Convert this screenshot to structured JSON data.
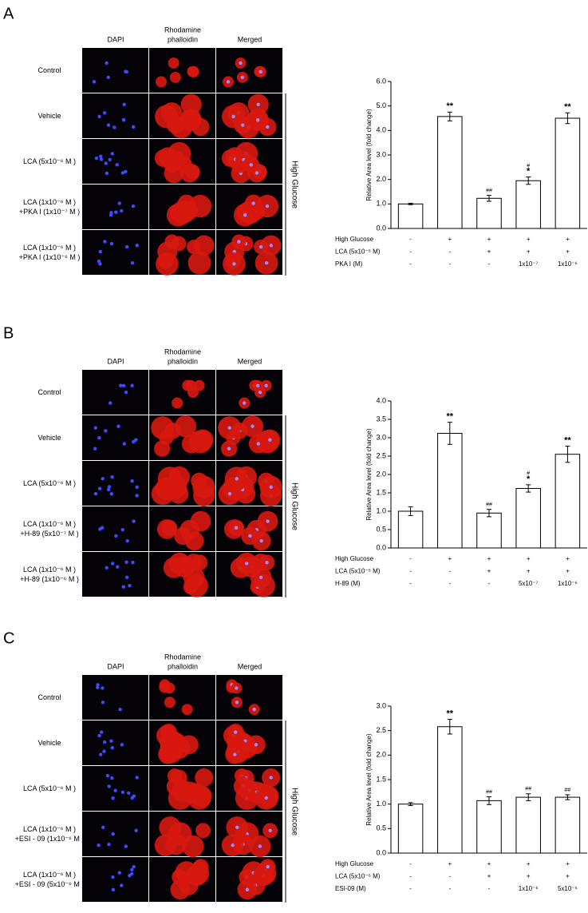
{
  "panels": [
    {
      "letter": "A",
      "columns": [
        [
          "DAPI"
        ],
        [
          "Rhodamine",
          "phalloidin"
        ],
        [
          "Merged"
        ]
      ],
      "rows": [
        [
          "Control"
        ],
        [
          "Vehicle"
        ],
        [
          "LCA (5x10⁻⁶ M )"
        ],
        [
          "LCA (1x10⁻⁶ M )",
          "+PKA I (1x10⁻⁷ M )"
        ],
        [
          "LCA (1x10⁻⁶ M )",
          "+PKA I (1x10⁻⁶ M )"
        ]
      ],
      "side_label": "High Glucose"
    },
    {
      "letter": "B",
      "columns": [
        [
          "DAPI"
        ],
        [
          "Rhodamine",
          "phalloidin"
        ],
        [
          "Merged"
        ]
      ],
      "rows": [
        [
          "Control"
        ],
        [
          "Vehicle"
        ],
        [
          "LCA (5x10⁻⁶ M )"
        ],
        [
          "LCA (1x10⁻⁶ M )",
          "+H-89 (5x10⁻⁷ M )"
        ],
        [
          "LCA (1x10⁻⁶ M )",
          "+H-89 (1x10⁻⁶ M )"
        ]
      ],
      "side_label": "High Glucose"
    },
    {
      "letter": "C",
      "columns": [
        [
          "DAPI"
        ],
        [
          "Rhodamine",
          "phalloidin"
        ],
        [
          "Merged"
        ]
      ],
      "rows": [
        [
          "Control"
        ],
        [
          "Vehicle"
        ],
        [
          "LCA (5x10⁻⁶ M )"
        ],
        [
          "LCA (1x10⁻⁶ M )",
          "+ESI - 09 (1x10⁻⁶ M )"
        ],
        [
          "LCA (1x10⁻⁶ M )",
          "+ESI - 09 (5x10⁻⁶ M )"
        ]
      ],
      "side_label": "High Glucose"
    }
  ],
  "chart_data": [
    {
      "type": "bar",
      "y_label": "Relative Area level (fold change)",
      "values": [
        1.0,
        4.57,
        1.23,
        1.95,
        4.5
      ],
      "errors": [
        0.03,
        0.18,
        0.12,
        0.15,
        0.22
      ],
      "color": "#ffffff",
      "edge_color": "#000000",
      "ylim": [
        0,
        6
      ],
      "yticks": [
        {
          "value": 0,
          "label": "0.0"
        },
        {
          "value": 1,
          "label": "1.0"
        },
        {
          "value": 2,
          "label": "2.0"
        },
        {
          "value": 3,
          "label": "3.0"
        },
        {
          "value": 4,
          "label": "4.0"
        },
        {
          "value": 5,
          "label": "5.0"
        },
        {
          "value": 6,
          "label": "6.0"
        }
      ],
      "annotations": [
        {
          "index": 1,
          "text": "**"
        },
        {
          "index": 2,
          "text": "##"
        },
        {
          "index": 3,
          "text": "#"
        },
        {
          "index": 3,
          "text": "*"
        },
        {
          "index": 4,
          "text": "**"
        }
      ],
      "conditions": [
        {
          "name": "High Glucose",
          "values": [
            "-",
            "+",
            "+",
            "+",
            "+"
          ]
        },
        {
          "name": "LCA (5x10⁻⁶ M)",
          "values": [
            "-",
            "-",
            "+",
            "+",
            "+"
          ]
        },
        {
          "name": "PKA I (M)",
          "values": [
            "-",
            "-",
            "-",
            "1x10⁻⁷",
            "1x10⁻⁶"
          ]
        }
      ]
    },
    {
      "type": "bar",
      "y_label": "Relative Area level (fold change)",
      "values": [
        1.0,
        3.12,
        0.95,
        1.62,
        2.55
      ],
      "errors": [
        0.12,
        0.3,
        0.1,
        0.1,
        0.22
      ],
      "color": "#ffffff",
      "edge_color": "#000000",
      "ylim": [
        0,
        4
      ],
      "yticks": [
        {
          "value": 0,
          "label": "0.0"
        },
        {
          "value": 0.5,
          "label": "0.5"
        },
        {
          "value": 1,
          "label": "1.0"
        },
        {
          "value": 1.5,
          "label": "1.5"
        },
        {
          "value": 2,
          "label": "2.0"
        },
        {
          "value": 2.5,
          "label": "2.5"
        },
        {
          "value": 3,
          "label": "3.0"
        },
        {
          "value": 3.5,
          "label": "3.5"
        },
        {
          "value": 4,
          "label": "4.0"
        }
      ],
      "annotations": [
        {
          "index": 1,
          "text": "**"
        },
        {
          "index": 2,
          "text": "##"
        },
        {
          "index": 3,
          "text": "#"
        },
        {
          "index": 3,
          "text": "*"
        },
        {
          "index": 4,
          "text": "**"
        }
      ],
      "conditions": [
        {
          "name": "High Glucose",
          "values": [
            "-",
            "+",
            "+",
            "+",
            "+"
          ]
        },
        {
          "name": "LCA (5x10⁻⁶ M)",
          "values": [
            "-",
            "-",
            "+",
            "+",
            "+"
          ]
        },
        {
          "name": "H-89 (M)",
          "values": [
            "-",
            "-",
            "-",
            "5x10⁻⁷",
            "1x10⁻⁶"
          ]
        }
      ]
    },
    {
      "type": "bar",
      "y_label": "Relative Area level (fold change)",
      "values": [
        1.0,
        2.58,
        1.07,
        1.14,
        1.14
      ],
      "errors": [
        0.03,
        0.15,
        0.08,
        0.07,
        0.05
      ],
      "color": "#ffffff",
      "edge_color": "#000000",
      "ylim": [
        0,
        3
      ],
      "yticks": [
        {
          "value": 0,
          "label": "0.0"
        },
        {
          "value": 0.5,
          "label": "0.5"
        },
        {
          "value": 1,
          "label": "1.0"
        },
        {
          "value": 1.5,
          "label": "1.5"
        },
        {
          "value": 2,
          "label": "2.0"
        },
        {
          "value": 2.5,
          "label": "2.5"
        },
        {
          "value": 3,
          "label": "3.0"
        }
      ],
      "annotations": [
        {
          "index": 1,
          "text": "**"
        },
        {
          "index": 2,
          "text": "##"
        },
        {
          "index": 3,
          "text": "##"
        },
        {
          "index": 4,
          "text": "##"
        }
      ],
      "conditions": [
        {
          "name": "High Glucose",
          "values": [
            "-",
            "+",
            "+",
            "+",
            "+"
          ]
        },
        {
          "name": "LCA (5x10⁻⁶ M)",
          "values": [
            "-",
            "-",
            "+",
            "+",
            "+"
          ]
        },
        {
          "name": "ESI-09 (M)",
          "values": [
            "-",
            "-",
            "-",
            "1x10⁻⁶",
            "5x10⁻⁶"
          ]
        }
      ]
    }
  ]
}
